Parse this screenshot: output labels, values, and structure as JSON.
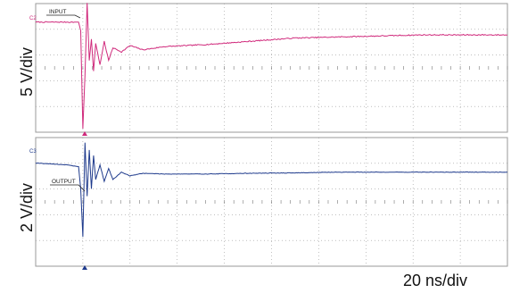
{
  "chart_data": [
    {
      "type": "line",
      "channel": "C2",
      "title": "",
      "ylabel": "5 V/div",
      "xlabel": "20 ns/div",
      "grid": true,
      "divisions": {
        "x": 10,
        "y": 5
      },
      "series": [
        {
          "name": "INPUT",
          "color": "#d02a7c"
        }
      ],
      "x": [
        -1.0,
        -0.3,
        0.0,
        0.05,
        0.1,
        0.15,
        0.2,
        0.25,
        0.3,
        0.35,
        0.4,
        0.5,
        0.6,
        0.7,
        0.8,
        1.0,
        1.2,
        1.5,
        2.0,
        3.0,
        4.0,
        5.0,
        6.0,
        7.0,
        8.0,
        9.0,
        10.0
      ],
      "y": [
        0.0,
        0.0,
        0.0,
        -0.4,
        -5.0,
        -2.5,
        0.9,
        -1.8,
        -0.8,
        -2.3,
        -1.0,
        -2.0,
        -0.9,
        -1.8,
        -1.2,
        -1.4,
        -1.1,
        -1.3,
        -1.15,
        -1.05,
        -0.9,
        -0.75,
        -0.7,
        -0.65,
        -0.6,
        -0.6,
        -0.6
      ],
      "ylim": [
        -5,
        0.2
      ],
      "xlim": [
        -1,
        10
      ]
    },
    {
      "type": "line",
      "channel": "C3",
      "title": "",
      "ylabel": "2 V/div",
      "xlabel": "20 ns/div",
      "grid": true,
      "divisions": {
        "x": 10,
        "y": 5
      },
      "series": [
        {
          "name": "OUTPUT",
          "color": "#1e3a8c"
        }
      ],
      "x": [
        -1.0,
        -0.3,
        0.0,
        0.05,
        0.1,
        0.15,
        0.2,
        0.25,
        0.3,
        0.35,
        0.4,
        0.5,
        0.6,
        0.7,
        0.8,
        1.0,
        1.2,
        1.5,
        2.0,
        3.0,
        4.0,
        5.0,
        6.0,
        7.0,
        8.0,
        9.0,
        10.0
      ],
      "y": [
        0.0,
        -0.05,
        -0.1,
        -0.7,
        -2.0,
        0.55,
        -0.9,
        0.35,
        -0.7,
        0.2,
        -0.45,
        -0.05,
        -0.5,
        -0.15,
        -0.45,
        -0.25,
        -0.35,
        -0.28,
        -0.3,
        -0.3,
        -0.28,
        -0.27,
        -0.25,
        -0.25,
        -0.25,
        -0.25,
        -0.25
      ],
      "ylim": [
        -2.7,
        0.3
      ],
      "xlim": [
        -1,
        10
      ]
    }
  ],
  "labels": {
    "top_volts": "5 V/div",
    "bottom_volts": "2 V/div",
    "timebase": "20 ns/div",
    "c2_tag": "C2",
    "c3_tag": "C3",
    "input_label": "INPUT",
    "output_label": "OUTPUT"
  },
  "colors": {
    "input": "#d02a7c",
    "output": "#1e3a8c",
    "grid": "#999999",
    "frame": "#9a9a9a"
  }
}
